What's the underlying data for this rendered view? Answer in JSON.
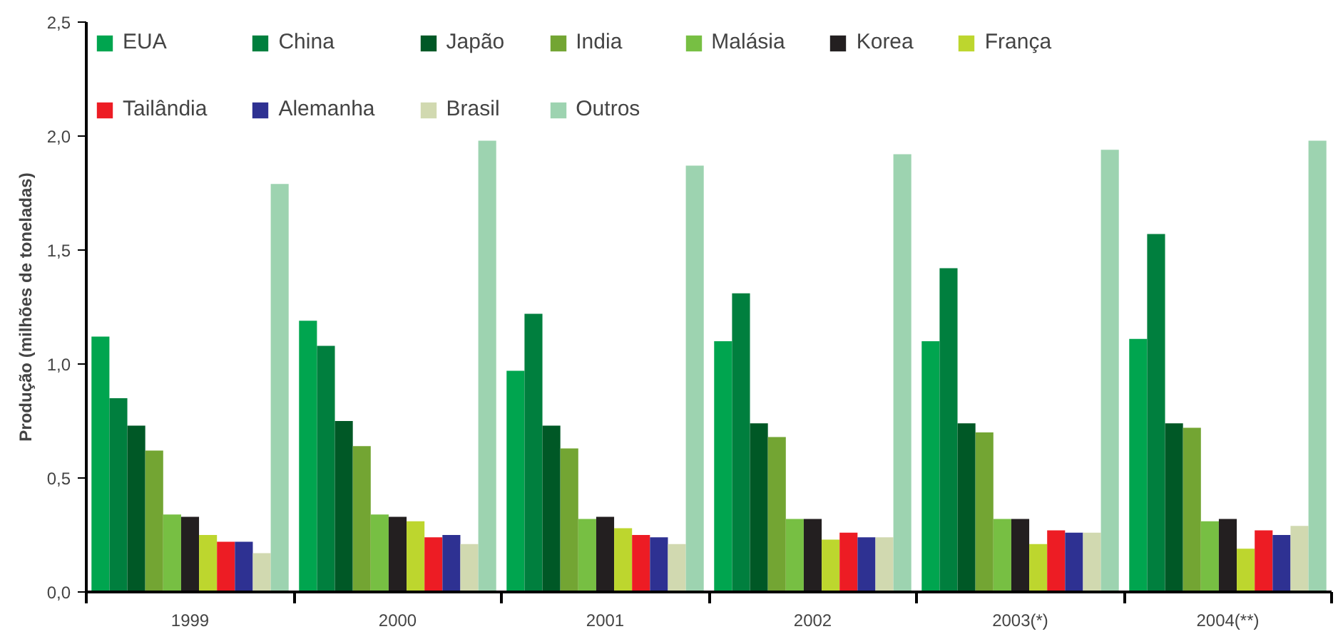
{
  "chart_data": {
    "type": "bar",
    "ylabel": "Produção (milhões de toneladas)",
    "categories": [
      "1999",
      "2000",
      "2001",
      "2002",
      "2003(*)",
      "2004(**)"
    ],
    "ylim": [
      0,
      2.5
    ],
    "yticks": [
      {
        "value": 0,
        "label": "0,0"
      },
      {
        "value": 0.5,
        "label": "0,5"
      },
      {
        "value": 1.0,
        "label": "1,0"
      },
      {
        "value": 1.5,
        "label": "1,5"
      },
      {
        "value": 2.0,
        "label": "2,0"
      },
      {
        "value": 2.5,
        "label": "2,5"
      }
    ],
    "grid": false,
    "legend": "top left",
    "series": [
      {
        "name": "EUA",
        "color": "#00a54f",
        "values": [
          1.12,
          1.19,
          0.97,
          1.1,
          1.1,
          1.11
        ]
      },
      {
        "name": "China",
        "color": "#007f3e",
        "values": [
          0.85,
          1.08,
          1.22,
          1.31,
          1.42,
          1.57
        ]
      },
      {
        "name": "Japão",
        "color": "#005826",
        "values": [
          0.73,
          0.75,
          0.73,
          0.74,
          0.74,
          0.74
        ]
      },
      {
        "name": "India",
        "color": "#73a533",
        "values": [
          0.62,
          0.64,
          0.63,
          0.68,
          0.7,
          0.72
        ]
      },
      {
        "name": "Malásia",
        "color": "#77bf43",
        "values": [
          0.34,
          0.34,
          0.32,
          0.32,
          0.32,
          0.31
        ]
      },
      {
        "name": "Korea",
        "color": "#231f20",
        "values": [
          0.33,
          0.33,
          0.33,
          0.32,
          0.32,
          0.32
        ]
      },
      {
        "name": "França",
        "color": "#bdd62e",
        "values": [
          0.25,
          0.31,
          0.28,
          0.23,
          0.21,
          0.19
        ]
      },
      {
        "name": "Tailândia",
        "color": "#ed1c24",
        "values": [
          0.22,
          0.24,
          0.25,
          0.26,
          0.27,
          0.27
        ]
      },
      {
        "name": "Alemanha",
        "color": "#2e3192",
        "values": [
          0.22,
          0.25,
          0.24,
          0.24,
          0.26,
          0.25
        ]
      },
      {
        "name": "Brasil",
        "color": "#d1d9b0",
        "values": [
          0.17,
          0.21,
          0.21,
          0.24,
          0.26,
          0.29
        ]
      },
      {
        "name": "Outros",
        "color": "#9dd3b0",
        "values": [
          1.79,
          1.98,
          1.87,
          1.92,
          1.94,
          1.98
        ]
      }
    ]
  }
}
